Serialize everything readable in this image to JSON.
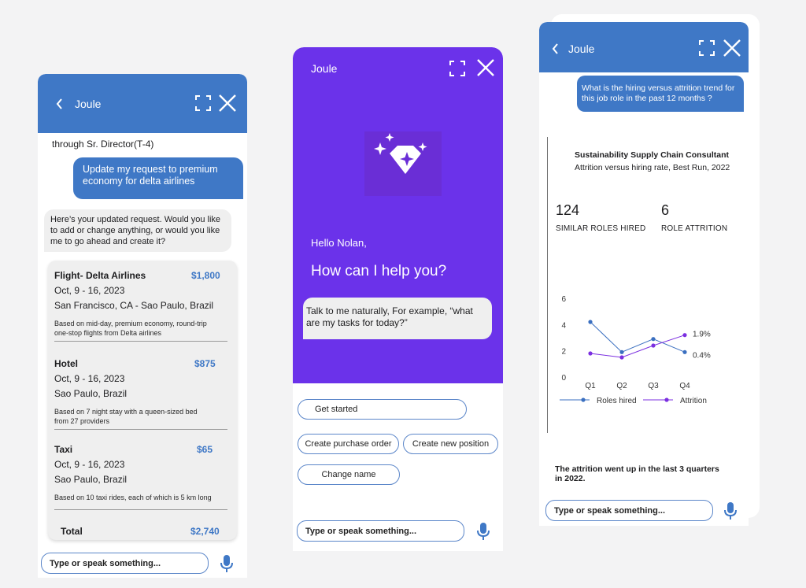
{
  "colors": {
    "primary_blue": "#3f78c6",
    "purple": "#6b32ea",
    "attrition_purple": "#7b2fe0",
    "hired_blue": "#3a6fc0"
  },
  "panel_travel": {
    "header": {
      "title": "Joule",
      "back_icon": "chevron-left-icon",
      "expand_icon": "expand-icon",
      "close_icon": "close-icon"
    },
    "prev_text": "through Sr. Director(T-4)",
    "user_message": [
      "Update my request to premium",
      "economy for delta airlines"
    ],
    "bot_message": [
      "Here’s your updated request. Would you like",
      "to add or change anything, or would you like",
      "me to go ahead and create it?"
    ],
    "summary": {
      "flight": {
        "title": "Flight- Delta Airlines",
        "price": "$1,800",
        "dates": "Oct, 9 - 16, 2023",
        "route": "San Francisco, CA - Sao Paulo, Brazil",
        "note": [
          "Based on mid-day, premium economy, round-trip",
          "one-stop flights from Delta airlines"
        ]
      },
      "hotel": {
        "title": "Hotel",
        "price": "$875",
        "dates": "Oct, 9 - 16, 2023",
        "location": "Sao Paulo, Brazil",
        "note": [
          "Based on 7 night stay with a queen-sized bed",
          "from 27 providers"
        ]
      },
      "taxi": {
        "title": "Taxi",
        "price": "$65",
        "dates": "Oct, 9 - 16, 2023",
        "location": "Sao Paulo, Brazil",
        "note": [
          "Based on 10 taxi rides, each of which is 5 km long"
        ]
      },
      "total": {
        "label": "Total",
        "price": "$2,740"
      }
    },
    "input_placeholder": "Type or speak something...",
    "mic_icon": "microphone-icon"
  },
  "panel_welcome": {
    "header": {
      "title": "Joule",
      "expand_icon": "expand-icon",
      "close_icon": "close-icon"
    },
    "logo_icon": "diamond-sparkle-icon",
    "greeting": "Hello Nolan,",
    "headline": "How can I help you?",
    "hint": [
      "Talk to me naturally, For example, “what",
      "are my tasks for today?”"
    ],
    "chips": [
      "Get started",
      "Create purchase order",
      "Create new position",
      "Change name"
    ],
    "input_placeholder": "Type or speak something...",
    "mic_icon": "microphone-icon"
  },
  "panel_analytics": {
    "header": {
      "title": "Joule",
      "back_icon": "chevron-left-icon",
      "expand_icon": "expand-icon",
      "close_icon": "close-icon"
    },
    "user_message": [
      "What is the hiring versus attrition trend for",
      "this job role in the past 12 months ?"
    ],
    "card_title": "Sustainability Supply Chain Consultant",
    "card_subtitle": "Attrition versus hiring rate, Best Run, 2022",
    "kpis": [
      {
        "value": "124",
        "label": "SIMILAR ROLES HIRED"
      },
      {
        "value": "6",
        "label": "ROLE ATTRITION"
      }
    ],
    "summary": [
      "The attrition went up in the last 3 quarters",
      "in 2022."
    ],
    "input_placeholder": "Type or speak something...",
    "mic_icon": "microphone-icon"
  },
  "chart_data": {
    "type": "line",
    "categories": [
      "Q1",
      "Q2",
      "Q3",
      "Q4"
    ],
    "yticks": [
      "0",
      "2",
      "4",
      "6"
    ],
    "ylim": [
      0,
      6
    ],
    "series": [
      {
        "name": "Roles hired",
        "values": [
          4.2,
          1.9,
          2.9,
          1.9
        ],
        "color": "#3a6fc0"
      },
      {
        "name": "Attrition",
        "values": [
          1.8,
          1.5,
          2.4,
          3.2
        ],
        "color": "#7b2fe0"
      }
    ],
    "annotations": [
      "1.9%",
      "0.4%"
    ],
    "legend": "bottom",
    "grid": false
  }
}
